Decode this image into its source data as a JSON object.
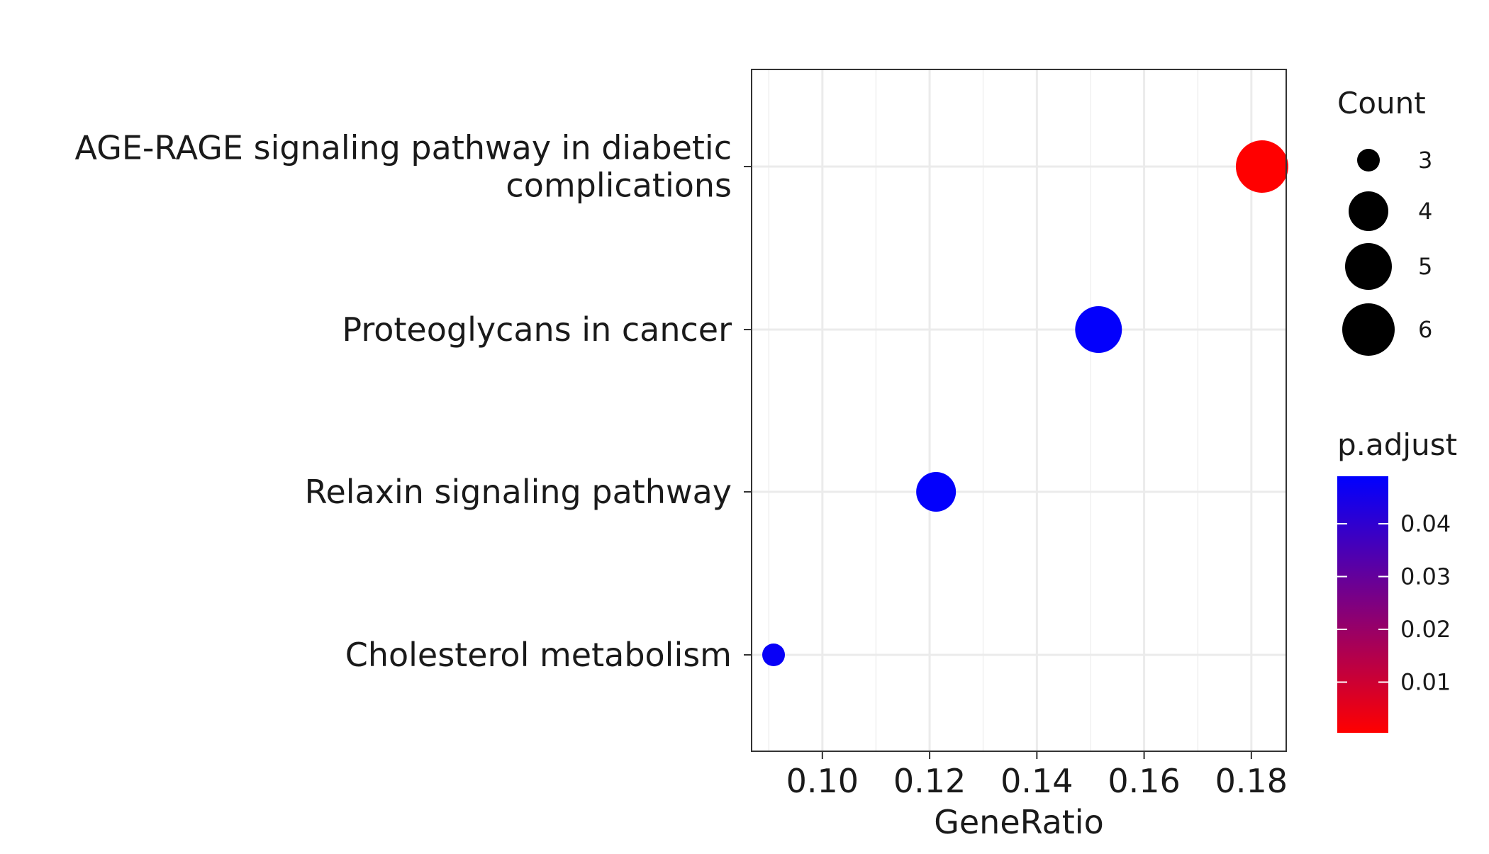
{
  "chart_data": {
    "type": "scatter",
    "xlabel": "GeneRatio",
    "ylabel": "",
    "xlim": [
      0.0868,
      0.1865
    ],
    "xticks": [
      0.1,
      0.12,
      0.14,
      0.16,
      0.18
    ],
    "xtick_labels": [
      "0.10",
      "0.12",
      "0.14",
      "0.16",
      "0.18"
    ],
    "grid": true,
    "categories": [
      [
        "AGE-RAGE signaling pathway in diabetic",
        "complications"
      ],
      [
        "Proteoglycans in cancer"
      ],
      [
        "Relaxin signaling pathway"
      ],
      [
        "Cholesterol metabolism"
      ]
    ],
    "points": [
      {
        "category_index": 0,
        "x": 0.182,
        "count": 6,
        "p_adjust": 0.0004
      },
      {
        "category_index": 1,
        "x": 0.1515,
        "count": 5,
        "p_adjust": 0.0485
      },
      {
        "category_index": 2,
        "x": 0.1212,
        "count": 4,
        "p_adjust": 0.0485
      },
      {
        "category_index": 3,
        "x": 0.0909,
        "count": 3,
        "p_adjust": 0.0475
      }
    ],
    "size_legend": {
      "title": "Count",
      "values": [
        3,
        4,
        5,
        6
      ],
      "labels": [
        "3",
        "4",
        "5",
        "6"
      ],
      "placement": "right"
    },
    "color_legend": {
      "title": "p.adjust",
      "range": [
        0.0004,
        0.049
      ],
      "ticks": [
        0.01,
        0.02,
        0.03,
        0.04
      ],
      "tick_labels": [
        "0.01",
        "0.02",
        "0.03",
        "0.04"
      ],
      "low_color": "#ff0000",
      "high_color": "#0000ff",
      "placement": "right"
    },
    "colors": {
      "panel_border": "#333333",
      "grid_major": "#ebebeb",
      "grid_minor": "#f4f4f4"
    }
  }
}
